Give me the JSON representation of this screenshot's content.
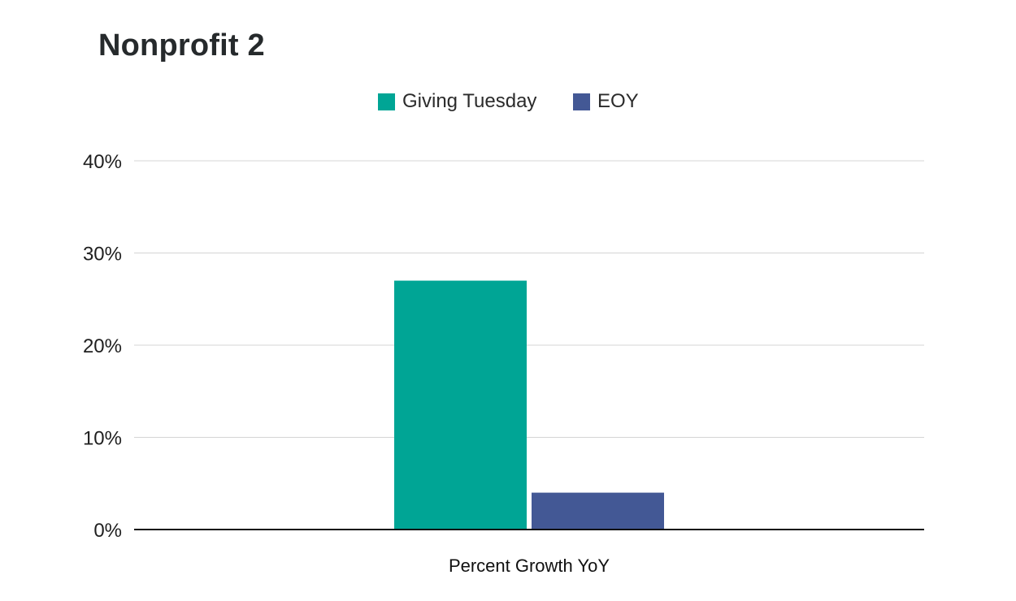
{
  "chart_data": {
    "type": "bar",
    "title": "Nonprofit 2",
    "categories": [
      "Percent Growth YoY"
    ],
    "series": [
      {
        "name": "Giving Tuesday",
        "color": "#00a595",
        "values": [
          27
        ]
      },
      {
        "name": "EOY",
        "color": "#435895",
        "values": [
          4
        ]
      }
    ],
    "xlabel": "",
    "ylabel": "",
    "ylim": [
      0,
      40
    ],
    "yticks": [
      0,
      10,
      20,
      30,
      40
    ],
    "ytick_labels": [
      "0%",
      "10%",
      "20%",
      "30%",
      "40%"
    ],
    "legend_position": "top-center",
    "grid": true
  }
}
